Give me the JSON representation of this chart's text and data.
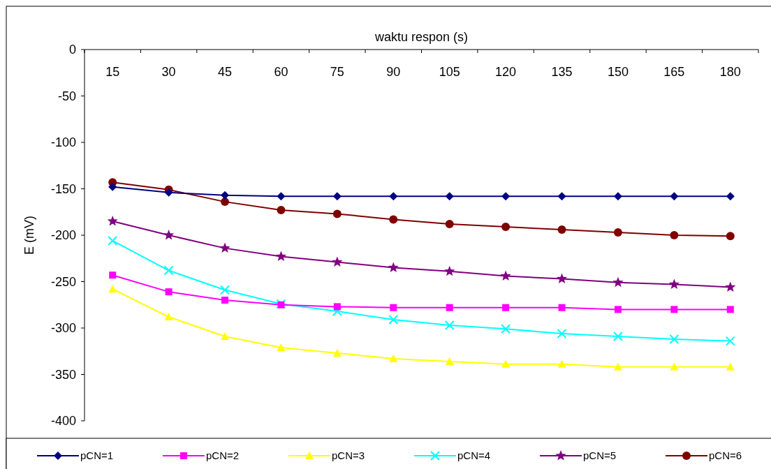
{
  "chart_data": {
    "type": "line",
    "xlabel": "waktu respon (s)",
    "ylabel": "E (mV)",
    "categories": [
      "15",
      "30",
      "45",
      "60",
      "75",
      "90",
      "105",
      "120",
      "135",
      "150",
      "165",
      "180"
    ],
    "ylim": [
      -400,
      0
    ],
    "yticks": [
      -400,
      -350,
      -300,
      -250,
      -200,
      -150,
      -100,
      -50,
      0
    ],
    "grid": false,
    "legend": "bottom",
    "line_style": "solid",
    "series": [
      {
        "name": "pCN=1",
        "color": "#000080",
        "marker": "diamond",
        "values": [
          -148,
          -154,
          -157,
          -158,
          -158,
          -158,
          -158,
          -158,
          -158,
          -158,
          -158,
          -158
        ]
      },
      {
        "name": "pCN=2",
        "color": "#ff00ff",
        "marker": "square",
        "values": [
          -243,
          -261,
          -270,
          -275,
          -277,
          -278,
          -278,
          -278,
          -278,
          -280,
          -280,
          -280
        ]
      },
      {
        "name": "pCN=3",
        "color": "#ffff00",
        "marker": "triangle",
        "values": [
          -258,
          -288,
          -309,
          -321,
          -327,
          -333,
          -336,
          -339,
          -339,
          -342,
          -342,
          -342
        ]
      },
      {
        "name": "pCN=4",
        "color": "#00ffff",
        "marker": "cross",
        "values": [
          -206,
          -238,
          -259,
          -274,
          -282,
          -291,
          -297,
          -301,
          -306,
          -309,
          -312,
          -314
        ]
      },
      {
        "name": "pCN=5",
        "color": "#800080",
        "marker": "star",
        "values": [
          -185,
          -200,
          -214,
          -223,
          -229,
          -235,
          -239,
          -244,
          -247,
          -251,
          -253,
          -256
        ]
      },
      {
        "name": "pCN=6",
        "color": "#800000",
        "marker": "circle",
        "values": [
          -143,
          -151,
          -164,
          -173,
          -177,
          -183,
          -188,
          -191,
          -194,
          -197,
          -200,
          -201
        ]
      }
    ]
  }
}
